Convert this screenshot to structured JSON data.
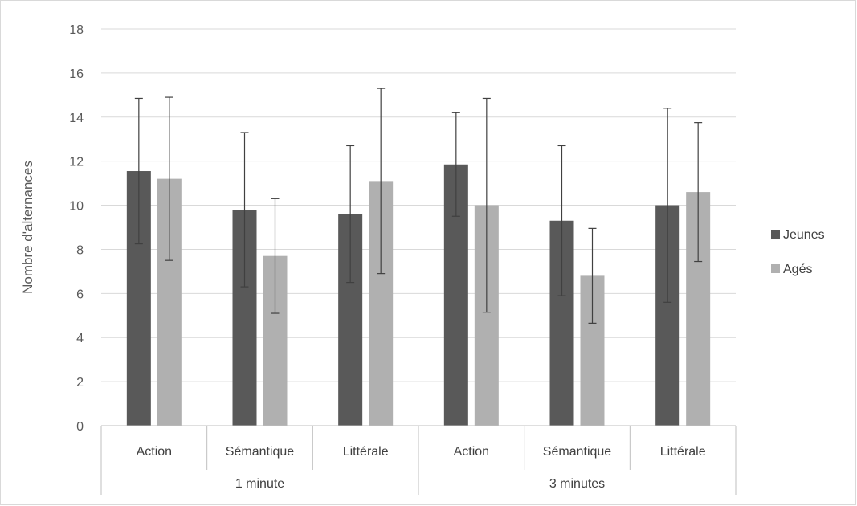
{
  "chart_data": {
    "type": "bar",
    "title": "",
    "ylabel": "Nombre d'alternances",
    "xlabel": "",
    "ylim": [
      0,
      18
    ],
    "yticks": [
      0,
      2,
      4,
      6,
      8,
      10,
      12,
      14,
      16,
      18
    ],
    "grid": true,
    "legend_position": "right",
    "groups": [
      {
        "label": "1 minute",
        "categories": [
          "Action",
          "Sémantique",
          "Littérale"
        ]
      },
      {
        "label": "3 minutes",
        "categories": [
          "Action",
          "Sémantique",
          "Littérale"
        ]
      }
    ],
    "categories": [
      "Action",
      "Sémantique",
      "Littérale",
      "Action",
      "Sémantique",
      "Littérale"
    ],
    "series": [
      {
        "name": "Jeunes",
        "color": "#595959",
        "values": [
          11.55,
          9.8,
          9.6,
          11.85,
          9.3,
          10.0
        ],
        "error": [
          3.3,
          3.5,
          3.1,
          2.35,
          3.4,
          4.4
        ]
      },
      {
        "name": "Agés",
        "color": "#b0b0b0",
        "values": [
          11.2,
          7.7,
          11.1,
          10.0,
          6.8,
          10.6
        ],
        "error": [
          3.7,
          2.6,
          4.2,
          4.85,
          2.15,
          3.15
        ]
      }
    ]
  }
}
